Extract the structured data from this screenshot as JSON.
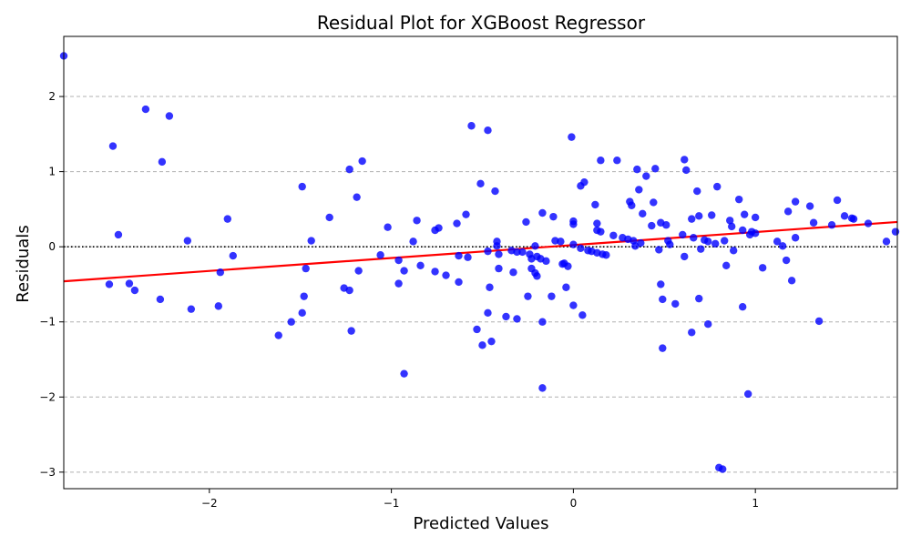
{
  "chart_data": {
    "type": "scatter",
    "title": "Residual Plot for XGBoost Regressor",
    "xlabel": "Predicted Values",
    "ylabel": "Residuals",
    "xlim": [
      -2.8,
      1.78
    ],
    "ylim": [
      -3.22,
      2.8
    ],
    "xticks": [
      -2,
      -1,
      0,
      1
    ],
    "yticks": [
      -3,
      -2,
      -1,
      0,
      1,
      2
    ],
    "grid": "y-dashed",
    "zero_line": 0,
    "point_color": "#0000ff",
    "trend_color": "#ff0000",
    "trend_line": {
      "x": [
        -2.8,
        1.78
      ],
      "y": [
        -0.46,
        0.33
      ]
    },
    "points": [
      [
        -2.8,
        2.54
      ],
      [
        -2.35,
        1.83
      ],
      [
        -2.22,
        1.74
      ],
      [
        -2.53,
        1.34
      ],
      [
        -2.26,
        1.13
      ],
      [
        -2.5,
        0.16
      ],
      [
        -2.55,
        -0.5
      ],
      [
        -2.44,
        -0.49
      ],
      [
        -2.41,
        -0.58
      ],
      [
        -2.27,
        -0.7
      ],
      [
        -2.1,
        -0.83
      ],
      [
        -2.12,
        0.08
      ],
      [
        -1.9,
        0.37
      ],
      [
        -1.87,
        -0.12
      ],
      [
        -1.94,
        -0.34
      ],
      [
        -1.95,
        -0.79
      ],
      [
        -1.62,
        -1.18
      ],
      [
        -1.55,
        -1.0
      ],
      [
        -1.49,
        -0.88
      ],
      [
        -1.48,
        -0.66
      ],
      [
        -1.47,
        -0.29
      ],
      [
        -1.44,
        0.08
      ],
      [
        -1.49,
        0.8
      ],
      [
        -1.34,
        0.39
      ],
      [
        -1.26,
        -0.55
      ],
      [
        -1.23,
        -0.58
      ],
      [
        -1.22,
        -1.12
      ],
      [
        -1.18,
        -0.32
      ],
      [
        -1.19,
        0.66
      ],
      [
        -1.16,
        1.14
      ],
      [
        -1.23,
        1.03
      ],
      [
        -1.06,
        -0.11
      ],
      [
        -1.02,
        0.26
      ],
      [
        -0.96,
        -0.18
      ],
      [
        -0.96,
        -0.49
      ],
      [
        -0.93,
        -0.32
      ],
      [
        -0.93,
        -1.69
      ],
      [
        -0.88,
        0.07
      ],
      [
        -0.86,
        0.35
      ],
      [
        -0.84,
        -0.25
      ],
      [
        -0.76,
        0.22
      ],
      [
        -0.76,
        -0.33
      ],
      [
        -0.74,
        0.25
      ],
      [
        -0.7,
        -0.38
      ],
      [
        -0.64,
        0.31
      ],
      [
        -0.63,
        -0.12
      ],
      [
        -0.63,
        -0.47
      ],
      [
        -0.59,
        0.43
      ],
      [
        -0.58,
        -0.14
      ],
      [
        -0.56,
        1.61
      ],
      [
        -0.53,
        -1.1
      ],
      [
        -0.51,
        0.84
      ],
      [
        -0.5,
        -1.31
      ],
      [
        -0.47,
        1.55
      ],
      [
        -0.47,
        -0.88
      ],
      [
        -0.47,
        -0.06
      ],
      [
        -0.46,
        -0.54
      ],
      [
        -0.45,
        -1.26
      ],
      [
        -0.43,
        0.74
      ],
      [
        -0.42,
        0.07
      ],
      [
        -0.42,
        0.01
      ],
      [
        -0.41,
        -0.29
      ],
      [
        -0.41,
        -0.1
      ],
      [
        -0.37,
        -0.93
      ],
      [
        -0.34,
        -0.05
      ],
      [
        -0.33,
        -0.34
      ],
      [
        -0.31,
        -0.96
      ],
      [
        -0.31,
        -0.07
      ],
      [
        -0.28,
        -0.07
      ],
      [
        -0.26,
        0.33
      ],
      [
        -0.25,
        -0.66
      ],
      [
        -0.24,
        -0.1
      ],
      [
        -0.23,
        -0.16
      ],
      [
        -0.23,
        -0.29
      ],
      [
        -0.21,
        -0.35
      ],
      [
        -0.2,
        -0.39
      ],
      [
        -0.21,
        0.01
      ],
      [
        -0.2,
        -0.13
      ],
      [
        -0.18,
        -0.16
      ],
      [
        -0.17,
        -1.0
      ],
      [
        -0.17,
        0.45
      ],
      [
        -0.17,
        -1.88
      ],
      [
        -0.15,
        -0.19
      ],
      [
        -0.12,
        -0.66
      ],
      [
        -0.11,
        0.4
      ],
      [
        -0.1,
        0.08
      ],
      [
        -0.07,
        0.07
      ],
      [
        -0.06,
        -0.23
      ],
      [
        -0.05,
        -0.22
      ],
      [
        -0.04,
        -0.54
      ],
      [
        -0.03,
        -0.26
      ],
      [
        -0.01,
        1.46
      ],
      [
        0.0,
        0.34
      ],
      [
        0.0,
        0.03
      ],
      [
        0.0,
        -0.78
      ],
      [
        0.0,
        0.3
      ],
      [
        0.04,
        0.81
      ],
      [
        0.04,
        -0.02
      ],
      [
        0.05,
        -0.91
      ],
      [
        0.06,
        0.86
      ],
      [
        0.08,
        -0.05
      ],
      [
        0.1,
        -0.06
      ],
      [
        0.12,
        0.56
      ],
      [
        0.13,
        0.22
      ],
      [
        0.13,
        0.31
      ],
      [
        0.13,
        -0.08
      ],
      [
        0.15,
        1.15
      ],
      [
        0.15,
        0.2
      ],
      [
        0.16,
        -0.1
      ],
      [
        0.18,
        -0.11
      ],
      [
        0.22,
        0.15
      ],
      [
        0.24,
        1.15
      ],
      [
        0.27,
        0.12
      ],
      [
        0.3,
        0.1
      ],
      [
        0.31,
        0.6
      ],
      [
        0.32,
        0.55
      ],
      [
        0.33,
        0.08
      ],
      [
        0.34,
        0.01
      ],
      [
        0.35,
        1.03
      ],
      [
        0.36,
        0.76
      ],
      [
        0.37,
        0.05
      ],
      [
        0.38,
        0.44
      ],
      [
        0.4,
        0.94
      ],
      [
        0.43,
        0.28
      ],
      [
        0.44,
        0.59
      ],
      [
        0.45,
        1.04
      ],
      [
        0.47,
        -0.04
      ],
      [
        0.48,
        0.32
      ],
      [
        0.48,
        -0.5
      ],
      [
        0.49,
        -0.7
      ],
      [
        0.49,
        -1.35
      ],
      [
        0.51,
        0.29
      ],
      [
        0.52,
        0.08
      ],
      [
        0.53,
        0.03
      ],
      [
        0.56,
        -0.76
      ],
      [
        0.6,
        0.16
      ],
      [
        0.61,
        -0.13
      ],
      [
        0.61,
        1.16
      ],
      [
        0.62,
        1.02
      ],
      [
        0.65,
        0.37
      ],
      [
        0.65,
        -1.14
      ],
      [
        0.66,
        0.12
      ],
      [
        0.68,
        0.74
      ],
      [
        0.69,
        0.41
      ],
      [
        0.69,
        -0.69
      ],
      [
        0.7,
        -0.03
      ],
      [
        0.72,
        0.09
      ],
      [
        0.74,
        0.07
      ],
      [
        0.74,
        -1.03
      ],
      [
        0.76,
        0.42
      ],
      [
        0.78,
        0.04
      ],
      [
        0.79,
        0.8
      ],
      [
        0.8,
        -2.94
      ],
      [
        0.82,
        -2.96
      ],
      [
        0.83,
        0.08
      ],
      [
        0.84,
        -0.25
      ],
      [
        0.86,
        0.35
      ],
      [
        0.87,
        0.27
      ],
      [
        0.88,
        -0.05
      ],
      [
        0.91,
        0.63
      ],
      [
        0.93,
        0.22
      ],
      [
        0.93,
        -0.8
      ],
      [
        0.94,
        0.43
      ],
      [
        0.96,
        -1.96
      ],
      [
        0.97,
        0.16
      ],
      [
        0.98,
        0.2
      ],
      [
        1.0,
        0.39
      ],
      [
        1.0,
        0.18
      ],
      [
        1.04,
        -0.28
      ],
      [
        1.12,
        0.07
      ],
      [
        1.15,
        0.01
      ],
      [
        1.17,
        -0.18
      ],
      [
        1.18,
        0.47
      ],
      [
        1.2,
        -0.45
      ],
      [
        1.22,
        0.6
      ],
      [
        1.22,
        0.12
      ],
      [
        1.3,
        0.54
      ],
      [
        1.32,
        0.32
      ],
      [
        1.35,
        -0.99
      ],
      [
        1.42,
        0.29
      ],
      [
        1.45,
        0.62
      ],
      [
        1.49,
        0.41
      ],
      [
        1.53,
        0.38
      ],
      [
        1.54,
        0.37
      ],
      [
        1.62,
        0.31
      ],
      [
        1.72,
        0.07
      ],
      [
        1.77,
        0.2
      ]
    ]
  }
}
